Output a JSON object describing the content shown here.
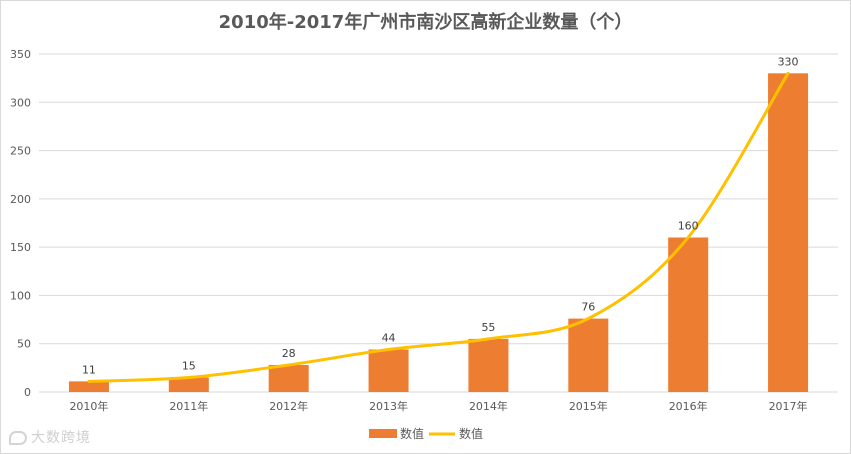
{
  "chart_data": {
    "type": "bar",
    "title": "2010年-2017年广州市南沙区高新企业数量（个）",
    "categories": [
      "2010年",
      "2011年",
      "2012年",
      "2013年",
      "2014年",
      "2015年",
      "2016年",
      "2017年"
    ],
    "series": [
      {
        "name": "数值",
        "type": "bar",
        "values": [
          11,
          15,
          28,
          44,
          55,
          76,
          160,
          330
        ],
        "color": "#ED7D31"
      },
      {
        "name": "数值",
        "type": "line",
        "values": [
          11,
          15,
          28,
          44,
          55,
          76,
          160,
          330
        ],
        "color": "#FFC000"
      }
    ],
    "data_labels": [
      11,
      15,
      28,
      44,
      55,
      76,
      160,
      330
    ],
    "ylim": [
      0,
      350
    ],
    "yticks": [
      0,
      50,
      100,
      150,
      200,
      250,
      300,
      350
    ],
    "grid": true,
    "legend_position": "bottom",
    "xlabel": "",
    "ylabel": ""
  },
  "watermark": {
    "text": "大数跨境",
    "icon": "brand-logo-icon"
  },
  "colors": {
    "gridline": "#d9d9d9",
    "axis_text": "#595959",
    "title": "#595959"
  }
}
